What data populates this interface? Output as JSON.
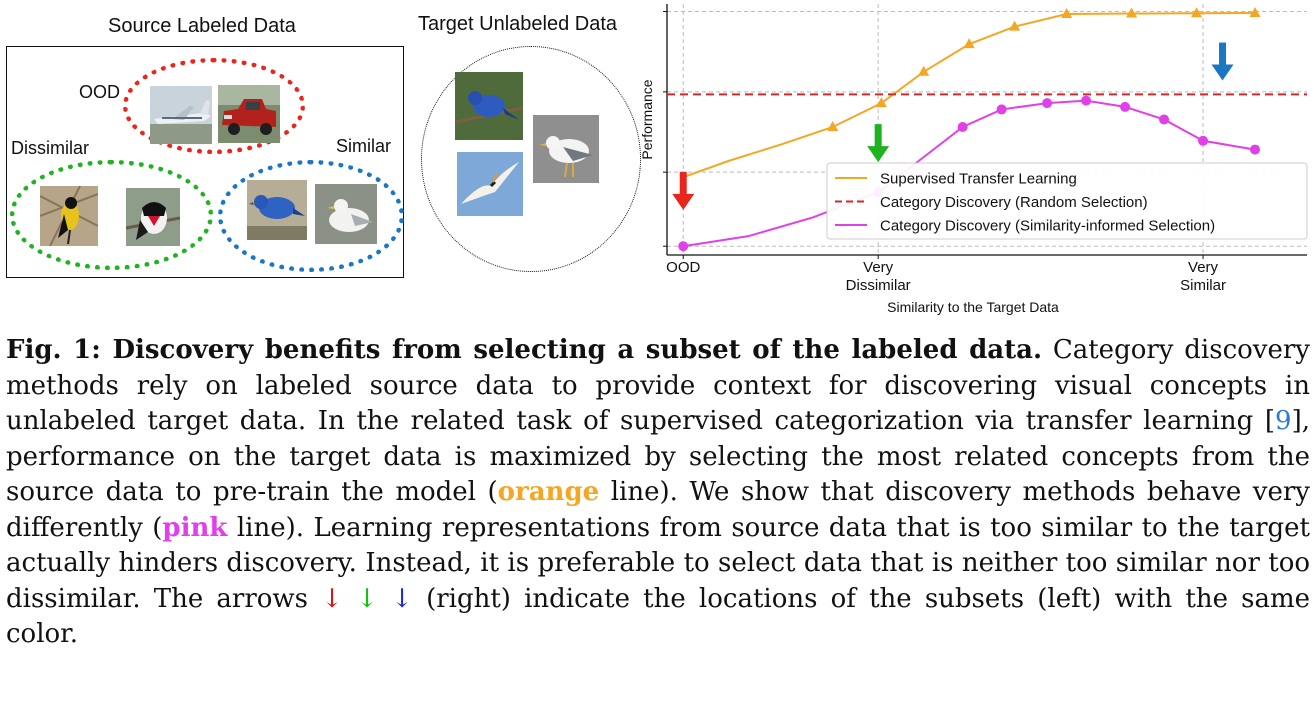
{
  "figure": {
    "source_title": "Source Labeled Data",
    "target_title": "Target Unlabeled Data",
    "groups": {
      "ood": "OOD",
      "dissimilar": "Dissimilar",
      "similar": "Similar"
    },
    "colors": {
      "ood": "#e8261c",
      "dissimilar": "#1fb31f",
      "similar": "#1c77c3"
    },
    "photo_subjects": {
      "ood": [
        "airplane",
        "red pickup truck"
      ],
      "dissimilar": [
        "yellow-black bird",
        "rose-breasted grosbeak"
      ],
      "similar": [
        "blue bunting",
        "seagull"
      ],
      "target": [
        "blue bunting",
        "seagull",
        "flying tern"
      ]
    }
  },
  "chart_data": {
    "type": "line",
    "xlabel": "Similarity to the Target Data",
    "ylabel": "Performance",
    "x_ticks": [
      {
        "x": 0,
        "label": [
          "OOD"
        ]
      },
      {
        "x": 3,
        "label": [
          "Very",
          "Dissimilar"
        ]
      },
      {
        "x": 8,
        "label": [
          "Very",
          "Similar"
        ]
      }
    ],
    "xlim": [
      -0.25,
      9.6
    ],
    "ylim": [
      0,
      10
    ],
    "grid": true,
    "legend_position": "lower-right",
    "series": [
      {
        "name": "Supervised Transfer Learning",
        "color": "#f5a623",
        "style": "solid",
        "marker": "triangle",
        "x": [
          0,
          0.7,
          1.5,
          2.3,
          3.05,
          3.7,
          4.4,
          5.1,
          5.9,
          6.9,
          7.9,
          8.8
        ],
        "y": [
          3.1,
          3.75,
          4.4,
          5.1,
          6.05,
          7.3,
          8.4,
          9.1,
          9.6,
          9.62,
          9.63,
          9.64
        ],
        "markers_at": [
          3,
          4,
          5,
          6,
          7,
          8,
          9,
          10,
          11
        ]
      },
      {
        "name": "Category Discovery (Random Selection)",
        "color": "#d62728",
        "style": "dashed",
        "marker": "none",
        "x": [
          -0.25,
          9.6
        ],
        "y": [
          6.4,
          6.4
        ]
      },
      {
        "name": "Category Discovery (Similarity-informed Selection)",
        "color": "#e040e8",
        "style": "solid",
        "marker": "circle",
        "x": [
          0,
          1.0,
          2.0,
          3.0,
          3.7,
          4.3,
          4.9,
          5.6,
          6.2,
          6.8,
          7.4,
          8.0,
          8.8
        ],
        "y": [
          0.35,
          0.75,
          1.5,
          2.5,
          3.9,
          5.1,
          5.8,
          6.05,
          6.15,
          5.9,
          5.4,
          4.55,
          4.2
        ],
        "markers_at": [
          0,
          3,
          5,
          6,
          7,
          8,
          9,
          10,
          11,
          12
        ]
      }
    ],
    "arrows": [
      {
        "x": 0,
        "y": 1.8,
        "color": "#e8261c"
      },
      {
        "x": 3.0,
        "y": 3.7,
        "color": "#1fb31f"
      },
      {
        "x": 8.3,
        "y": 6.95,
        "color": "#1c77c3"
      }
    ]
  },
  "caption": {
    "lead": "Fig. 1: Discovery benefits from selecting a subset of the labeled data.",
    "p1": " Category discovery methods rely on labeled source data to provide context for discovering visual concepts in unlabeled target data. In the related task of supervised categorization via transfer learning [",
    "ref": "9",
    "p2": "], performance on the target data is maximized by selecting the most related concepts from the source data to pre-train the model (",
    "orange_word": "orange",
    "p3": " line). We show that discovery methods behave very differently (",
    "pink_word": "pink",
    "p4": " line). Learning representations from source data that is too similar to the target actually hinders discovery. Instead, it is preferable to select data that is neither too similar nor too dissimilar. The arrows ",
    "arrow_red": "↓",
    "arrow_green": "↓",
    "arrow_blue": "↓",
    "p5": " (right) indicate the locations of the subsets (left) with the same color."
  }
}
